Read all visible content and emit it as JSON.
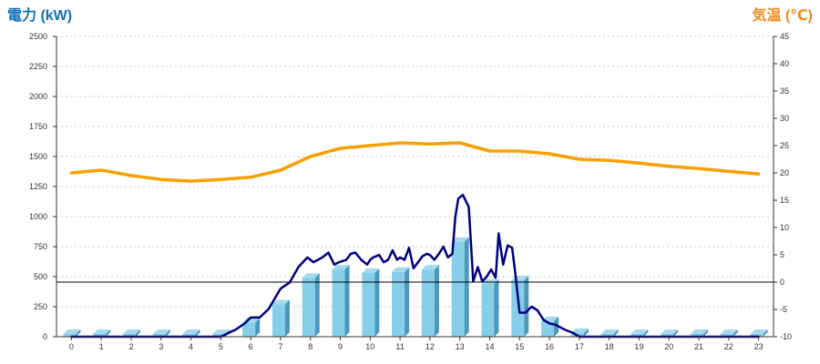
{
  "colors": {
    "power_line": "#000080",
    "temperature_line": "#f7a000",
    "bar_front": "#87ceeb",
    "bar_side": "#4a98bd",
    "bar_top": "#a6d9ee",
    "left_title": "#1070b8",
    "right_title": "#ee8a1e",
    "grid": "#c8c8c8"
  },
  "chart_data": {
    "type": "bar+line",
    "title_left": "電力 (kW)",
    "title_right": "気温 (℃)",
    "categories": [
      "0",
      "1",
      "2",
      "3",
      "4",
      "5",
      "6",
      "7",
      "8",
      "9",
      "10",
      "11",
      "12",
      "13",
      "14",
      "15",
      "16",
      "17",
      "18",
      "19",
      "20",
      "21",
      "22",
      "23"
    ],
    "y_left": {
      "range": [
        0,
        2500
      ],
      "ticks": [
        "0",
        "250",
        "500",
        "750",
        "1000",
        "1250",
        "1500",
        "1750",
        "2000",
        "2250",
        "2500"
      ]
    },
    "y_right": {
      "range": [
        -10,
        45
      ],
      "ticks": [
        "-10",
        "-5",
        "0",
        "5",
        "10",
        "15",
        "20",
        "25",
        "30",
        "35",
        "40",
        "45"
      ]
    },
    "grid": true,
    "series": [
      {
        "kind": "bar",
        "axis": "left",
        "values": [
          0,
          0,
          0,
          0,
          0,
          0,
          120,
          270,
          490,
          560,
          530,
          540,
          560,
          790,
          440,
          470,
          130,
          30,
          0,
          0,
          0,
          0,
          0,
          0
        ]
      },
      {
        "kind": "line",
        "axis": "left",
        "points": [
          [
            0,
            0
          ],
          [
            1,
            0
          ],
          [
            2,
            0
          ],
          [
            3,
            0
          ],
          [
            4,
            0
          ],
          [
            5,
            0
          ],
          [
            5.5,
            60
          ],
          [
            5.8,
            110
          ],
          [
            6,
            160
          ],
          [
            6.3,
            160
          ],
          [
            6.6,
            230
          ],
          [
            7,
            400
          ],
          [
            7.3,
            450
          ],
          [
            7.6,
            580
          ],
          [
            7.9,
            660
          ],
          [
            8.1,
            620
          ],
          [
            8.4,
            660
          ],
          [
            8.6,
            700
          ],
          [
            8.8,
            600
          ],
          [
            8.95,
            620
          ],
          [
            9.2,
            640
          ],
          [
            9.35,
            690
          ],
          [
            9.5,
            700
          ],
          [
            9.7,
            640
          ],
          [
            9.9,
            600
          ],
          [
            10,
            640
          ],
          [
            10.1,
            660
          ],
          [
            10.3,
            680
          ],
          [
            10.45,
            620
          ],
          [
            10.6,
            640
          ],
          [
            10.75,
            720
          ],
          [
            10.9,
            640
          ],
          [
            11,
            660
          ],
          [
            11.15,
            640
          ],
          [
            11.3,
            740
          ],
          [
            11.45,
            570
          ],
          [
            11.6,
            620
          ],
          [
            11.75,
            670
          ],
          [
            11.9,
            690
          ],
          [
            12,
            680
          ],
          [
            12.15,
            640
          ],
          [
            12.3,
            690
          ],
          [
            12.45,
            750
          ],
          [
            12.6,
            660
          ],
          [
            12.75,
            690
          ],
          [
            12.85,
            1000
          ],
          [
            12.95,
            1150
          ],
          [
            13.1,
            1180
          ],
          [
            13.3,
            1080
          ],
          [
            13.45,
            460
          ],
          [
            13.6,
            580
          ],
          [
            13.75,
            460
          ],
          [
            13.9,
            500
          ],
          [
            14.05,
            560
          ],
          [
            14.2,
            490
          ],
          [
            14.3,
            860
          ],
          [
            14.45,
            600
          ],
          [
            14.6,
            760
          ],
          [
            14.75,
            740
          ],
          [
            14.85,
            540
          ],
          [
            15,
            200
          ],
          [
            15.2,
            200
          ],
          [
            15.4,
            250
          ],
          [
            15.6,
            220
          ],
          [
            15.8,
            140
          ],
          [
            16,
            110
          ],
          [
            16.2,
            100
          ],
          [
            16.5,
            60
          ],
          [
            16.8,
            30
          ],
          [
            17,
            0
          ],
          [
            18,
            0
          ],
          [
            19,
            0
          ],
          [
            20,
            0
          ],
          [
            21,
            0
          ],
          [
            22,
            0
          ],
          [
            23,
            0
          ]
        ]
      },
      {
        "kind": "line",
        "axis": "right",
        "points": [
          [
            0,
            20
          ],
          [
            1,
            20.5
          ],
          [
            2,
            19.5
          ],
          [
            3,
            18.8
          ],
          [
            4,
            18.5
          ],
          [
            5,
            18.8
          ],
          [
            6,
            19.2
          ],
          [
            7,
            20.5
          ],
          [
            8,
            23
          ],
          [
            9,
            24.5
          ],
          [
            10,
            25
          ],
          [
            11,
            25.5
          ],
          [
            12,
            25.3
          ],
          [
            13,
            25.5
          ],
          [
            14,
            24
          ],
          [
            15,
            24
          ],
          [
            16,
            23.5
          ],
          [
            17,
            22.5
          ],
          [
            18,
            22.3
          ],
          [
            19,
            21.8
          ],
          [
            20,
            21.2
          ],
          [
            21,
            20.8
          ],
          [
            22,
            20.3
          ],
          [
            23,
            19.8
          ]
        ]
      }
    ],
    "reference_line": {
      "axis": "right",
      "value": 0
    }
  }
}
